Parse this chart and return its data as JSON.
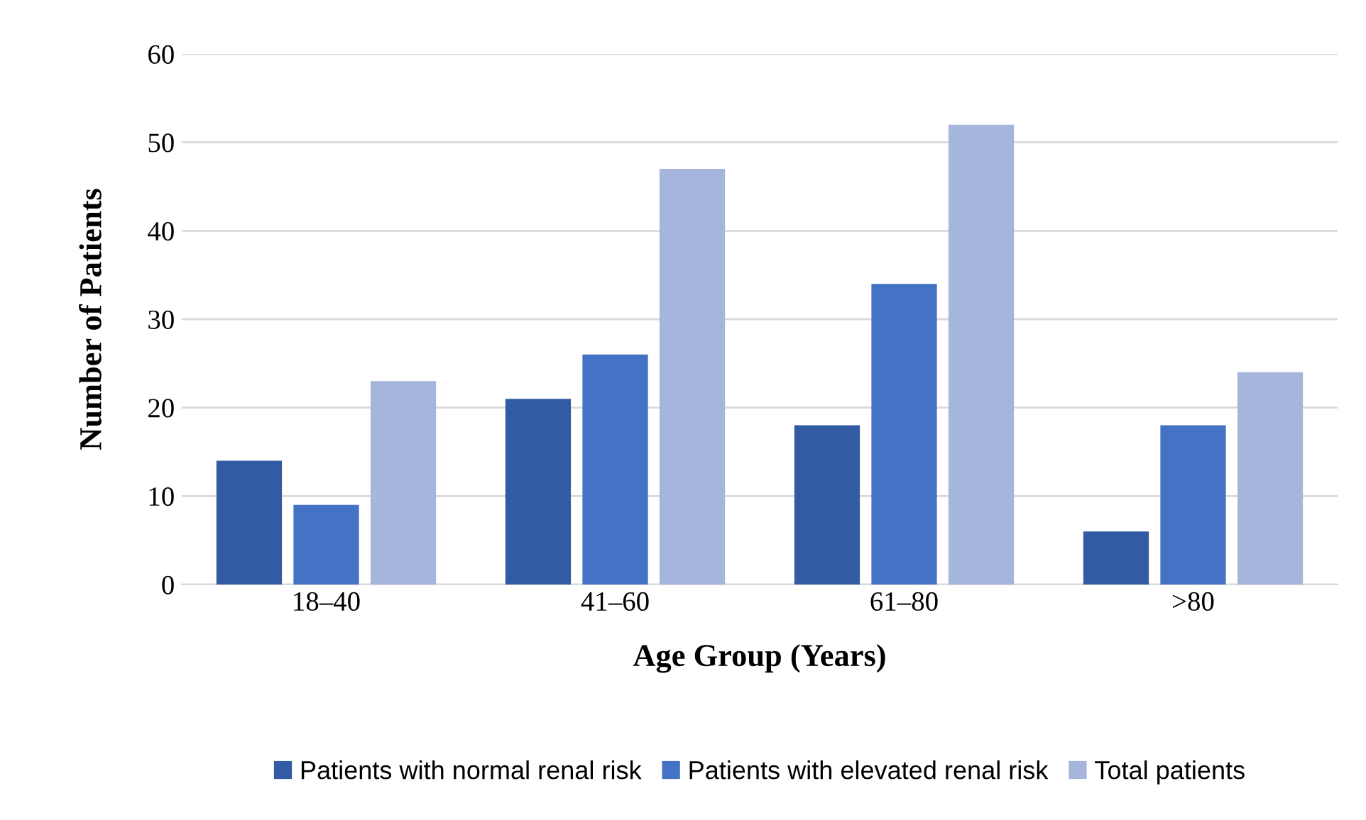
{
  "chart_data": {
    "type": "bar",
    "xlabel": "Age Group (Years)",
    "ylabel": "Number of Patients",
    "categories": [
      "18–40",
      "41–60",
      "61–80",
      ">80"
    ],
    "series": [
      {
        "name": "Patients with normal renal risk",
        "color": "#335ba3",
        "values": [
          14,
          21,
          18,
          6
        ]
      },
      {
        "name": "Patients with elevated renal risk",
        "color": "#4472c4",
        "values": [
          9,
          26,
          34,
          18
        ]
      },
      {
        "name": "Total patients",
        "color": "#a5b5db",
        "values": [
          23,
          47,
          52,
          24
        ]
      }
    ],
    "ylim": [
      0,
      60
    ],
    "yticks": [
      0,
      10,
      20,
      30,
      40,
      50,
      60
    ],
    "grid": "y",
    "legend": "bottom"
  }
}
